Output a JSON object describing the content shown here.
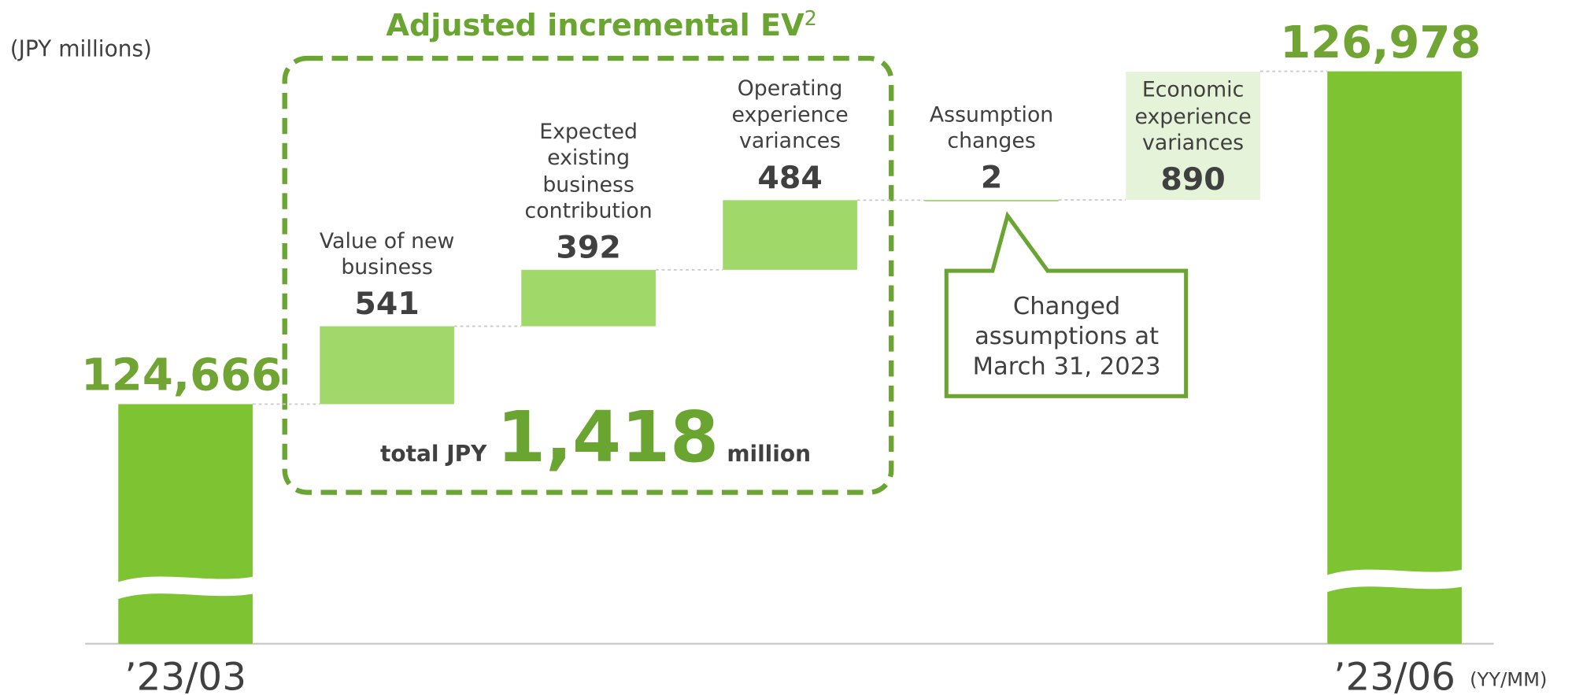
{
  "chart_data": {
    "type": "waterfall",
    "title": "Adjusted incremental EV",
    "title_superscript": "2",
    "unit_label": "(JPY millions)",
    "x_unit_label": "(YY/MM)",
    "categories": [
      "’23/03",
      "Value of new business",
      "Expected existing business contribution",
      "Operating experience variances",
      "Assumption changes",
      "Economic experience variances",
      "’23/06"
    ],
    "values": [
      124666,
      541,
      392,
      484,
      2,
      890,
      126978
    ],
    "value_labels": [
      "124,666",
      "541",
      "392",
      "484",
      "2",
      "890",
      "126,978"
    ],
    "kinds": [
      "total",
      "delta",
      "delta",
      "delta",
      "delta",
      "delta",
      "total"
    ],
    "colors": [
      "#7dc332",
      "#a0d86a",
      "#a0d86a",
      "#a0d86a",
      "#a0d86a",
      "#e5f3d8",
      "#7dc332"
    ],
    "total_prefix": "total JPY",
    "total_value_label": "1,418",
    "total_suffix": "million",
    "callout": "Changed assumptions at March 31, 2023"
  }
}
